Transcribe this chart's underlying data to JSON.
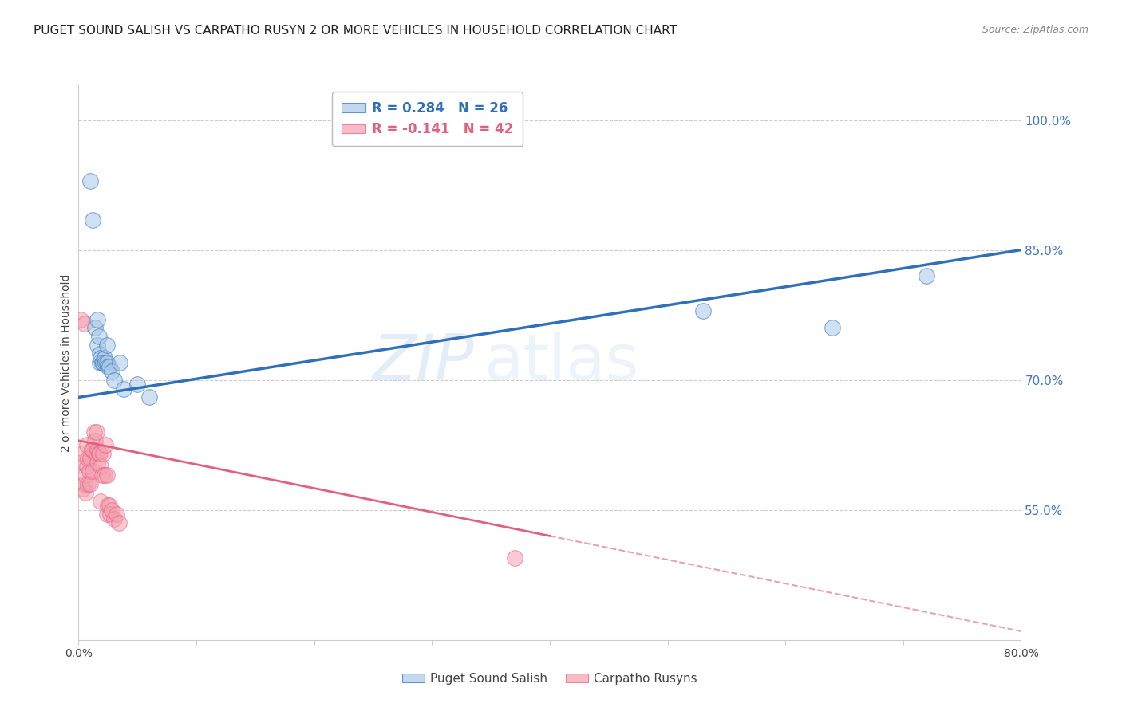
{
  "title": "PUGET SOUND SALISH VS CARPATHO RUSYN 2 OR MORE VEHICLES IN HOUSEHOLD CORRELATION CHART",
  "source": "Source: ZipAtlas.com",
  "ylabel": "2 or more Vehicles in Household",
  "legend1_r": "R = 0.284",
  "legend1_n": "N = 26",
  "legend2_r": "R = -0.141",
  "legend2_n": "N = 42",
  "label1": "Puget Sound Salish",
  "label2": "Carpatho Rusyns",
  "color1": "#a8c8e8",
  "color2": "#f4a0b0",
  "trendline1_color": "#3070b8",
  "trendline2_color": "#e06080",
  "xlim": [
    0.0,
    0.8
  ],
  "ylim": [
    0.4,
    1.04
  ],
  "xticks": [
    0.0,
    0.1,
    0.2,
    0.3,
    0.4,
    0.5,
    0.6,
    0.7,
    0.8
  ],
  "yticks_right": [
    0.55,
    0.7,
    0.85,
    1.0
  ],
  "ytick_right_labels": [
    "55.0%",
    "70.0%",
    "85.0%",
    "100.0%"
  ],
  "blue_x": [
    0.01,
    0.012,
    0.014,
    0.016,
    0.016,
    0.017,
    0.018,
    0.018,
    0.019,
    0.02,
    0.021,
    0.022,
    0.023,
    0.024,
    0.024,
    0.025,
    0.026,
    0.028,
    0.03,
    0.035,
    0.038,
    0.05,
    0.06,
    0.53,
    0.64,
    0.72
  ],
  "blue_y": [
    0.93,
    0.885,
    0.76,
    0.77,
    0.74,
    0.75,
    0.73,
    0.72,
    0.725,
    0.72,
    0.72,
    0.725,
    0.72,
    0.72,
    0.74,
    0.715,
    0.715,
    0.71,
    0.7,
    0.72,
    0.69,
    0.695,
    0.68,
    0.78,
    0.76,
    0.82
  ],
  "pink_x": [
    0.002,
    0.003,
    0.004,
    0.004,
    0.005,
    0.005,
    0.006,
    0.006,
    0.007,
    0.007,
    0.008,
    0.008,
    0.009,
    0.01,
    0.01,
    0.011,
    0.012,
    0.012,
    0.013,
    0.014,
    0.015,
    0.015,
    0.016,
    0.016,
    0.017,
    0.018,
    0.019,
    0.019,
    0.02,
    0.021,
    0.022,
    0.023,
    0.024,
    0.024,
    0.025,
    0.026,
    0.027,
    0.028,
    0.03,
    0.032,
    0.034,
    0.37
  ],
  "pink_y": [
    0.77,
    0.605,
    0.615,
    0.575,
    0.765,
    0.58,
    0.59,
    0.57,
    0.625,
    0.6,
    0.58,
    0.61,
    0.595,
    0.61,
    0.58,
    0.62,
    0.62,
    0.595,
    0.64,
    0.63,
    0.64,
    0.615,
    0.62,
    0.605,
    0.615,
    0.615,
    0.6,
    0.56,
    0.59,
    0.615,
    0.59,
    0.625,
    0.59,
    0.545,
    0.555,
    0.555,
    0.545,
    0.55,
    0.54,
    0.545,
    0.535,
    0.495
  ],
  "background_color": "#ffffff",
  "grid_color": "#cccccc",
  "watermark_zip": "ZIP",
  "watermark_atlas": "atlas",
  "title_fontsize": 11,
  "axis_fontsize": 10,
  "tick_fontsize": 10,
  "right_tick_color": "#4472c4",
  "marker_size": 200,
  "trendline1_x0": 0.0,
  "trendline1_y0": 0.68,
  "trendline1_x1": 0.8,
  "trendline1_y1": 0.85,
  "trendline2_x0": 0.0,
  "trendline2_y0": 0.63,
  "trendline2_x1": 0.4,
  "trendline2_y1": 0.52,
  "trendline2_dash_x0": 0.4,
  "trendline2_dash_y0": 0.52,
  "trendline2_dash_x1": 0.8,
  "trendline2_dash_y1": 0.41
}
